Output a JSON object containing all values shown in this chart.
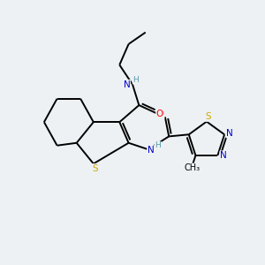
{
  "background_color": "#edf1f4",
  "atom_colors": {
    "C": "#000000",
    "N": "#0000cc",
    "O": "#ff0000",
    "S": "#ccaa00",
    "H": "#5599aa"
  },
  "figsize": [
    3.0,
    3.0
  ],
  "dpi": 100,
  "lw": 1.4,
  "fontsize": 7.5
}
